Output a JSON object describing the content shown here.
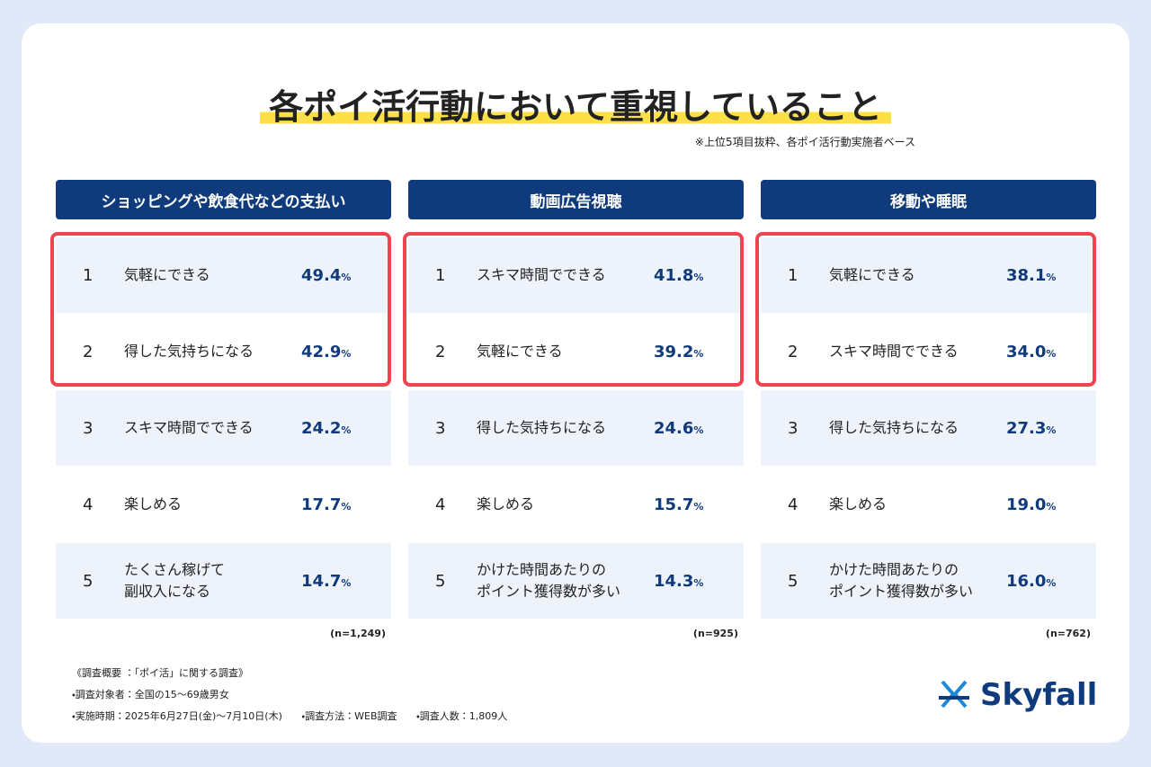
{
  "title": "各ポイ活行動において重視していること",
  "note": "※上位5項目抜粋、各ポイ活行動実施者ベース",
  "unit": "%",
  "columns": [
    {
      "header": "ショッピングや飲食代などの支払い",
      "n": "(n=1,249)",
      "rows": [
        {
          "rank": 1,
          "label": "気軽にできる",
          "value": "49.4"
        },
        {
          "rank": 2,
          "label": "得した気持ちになる",
          "value": "42.9"
        },
        {
          "rank": 3,
          "label": "スキマ時間でできる",
          "value": "24.2"
        },
        {
          "rank": 4,
          "label": "楽しめる",
          "value": "17.7"
        },
        {
          "rank": 5,
          "label": "たくさん稼げて\n副収入になる",
          "value": "14.7"
        }
      ]
    },
    {
      "header": "動画広告視聴",
      "n": "(n=925)",
      "rows": [
        {
          "rank": 1,
          "label": "スキマ時間でできる",
          "value": "41.8"
        },
        {
          "rank": 2,
          "label": "気軽にできる",
          "value": "39.2"
        },
        {
          "rank": 3,
          "label": "得した気持ちになる",
          "value": "24.6"
        },
        {
          "rank": 4,
          "label": "楽しめる",
          "value": "15.7"
        },
        {
          "rank": 5,
          "label": "かけた時間あたりの\nポイント獲得数が多い",
          "value": "14.3"
        }
      ]
    },
    {
      "header": "移動や睡眠",
      "n": "(n=762)",
      "rows": [
        {
          "rank": 1,
          "label": "気軽にできる",
          "value": "38.1"
        },
        {
          "rank": 2,
          "label": "スキマ時間でできる",
          "value": "34.0"
        },
        {
          "rank": 3,
          "label": "得した気持ちになる",
          "value": "27.3"
        },
        {
          "rank": 4,
          "label": "楽しめる",
          "value": "19.0"
        },
        {
          "rank": 5,
          "label": "かけた時間あたりの\nポイント獲得数が多い",
          "value": "16.0"
        }
      ]
    }
  ],
  "footer": {
    "heading": "《調査概要 ：「ポイ活」に関する調査》",
    "target": "・調査対象者：全国の15〜69歳男女",
    "period": "・実施時期：2025年6月27日(金)〜7月10日(木)",
    "method": "・調査方法：WEB調査",
    "count": "・調査人数：1,809人"
  },
  "logo": "Skyfall"
}
